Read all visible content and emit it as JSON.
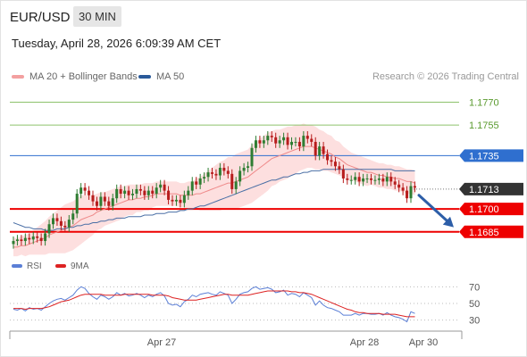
{
  "header": {
    "pair": "EUR/USD",
    "timeframe": "30 MIN"
  },
  "datetime": "Tuesday, April 28, 2026 6:09:39 AM CET",
  "legend": {
    "ma20": "MA 20 + Bollinger Bands",
    "ma50": "MA 50",
    "credit": "Research © 2026 Trading Central"
  },
  "colors": {
    "up": "#2e7d32",
    "down": "#b71c1c",
    "ma20": "#ef8a8a",
    "ma50": "#4a6fa5",
    "support": "#ee0000",
    "resistance_minor": "#8dc26b",
    "resistance_major": "#2f6fcf",
    "current": "#333333",
    "rsi": "#5b7fd6",
    "rsi_ma": "#dd2222",
    "arrow": "#2d5ea8"
  },
  "chart_data": {
    "type": "candlestick",
    "x_ticks": [
      "Apr 27",
      "Apr 28",
      "Apr 30"
    ],
    "price_ylim": [
      1.1672,
      1.1782
    ],
    "levels": [
      {
        "value": 1.177,
        "label": "1.1770",
        "kind": "resistance_minor"
      },
      {
        "value": 1.1755,
        "label": "1.1755",
        "kind": "resistance_minor"
      },
      {
        "value": 1.1735,
        "label": "1.1735",
        "kind": "resistance_major"
      },
      {
        "value": 1.1713,
        "label": "1.1713",
        "kind": "current"
      },
      {
        "value": 1.17,
        "label": "1.1700",
        "kind": "support"
      },
      {
        "value": 1.1685,
        "label": "1.1685",
        "kind": "support"
      }
    ],
    "forecast_arrow": {
      "from": 1.1709,
      "to": 1.1688
    },
    "candles_close": [
      1.1679,
      1.168,
      1.1679,
      1.1681,
      1.168,
      1.1682,
      1.1681,
      1.1679,
      1.1684,
      1.169,
      1.1694,
      1.1692,
      1.1689,
      1.1688,
      1.1693,
      1.1697,
      1.171,
      1.1714,
      1.1712,
      1.1709,
      1.1705,
      1.1702,
      1.1708,
      1.1705,
      1.1702,
      1.1707,
      1.1713,
      1.171,
      1.1712,
      1.1709,
      1.171,
      1.1713,
      1.1712,
      1.1709,
      1.1712,
      1.171,
      1.1714,
      1.1716,
      1.1712,
      1.1706,
      1.1705,
      1.1706,
      1.1704,
      1.1709,
      1.1712,
      1.1718,
      1.1716,
      1.172,
      1.1721,
      1.1724,
      1.1723,
      1.1722,
      1.1727,
      1.1725,
      1.1723,
      1.1713,
      1.1718,
      1.1725,
      1.1727,
      1.1728,
      1.174,
      1.1745,
      1.1743,
      1.1745,
      1.1748,
      1.1747,
      1.1743,
      1.1745,
      1.1747,
      1.1742,
      1.1744,
      1.1744,
      1.1741,
      1.1748,
      1.1746,
      1.1744,
      1.1735,
      1.1741,
      1.1736,
      1.1732,
      1.1731,
      1.1728,
      1.1726,
      1.172,
      1.1719,
      1.1719,
      1.1721,
      1.1718,
      1.172,
      1.172,
      1.1719,
      1.1719,
      1.172,
      1.1718,
      1.1721,
      1.1718,
      1.1716,
      1.1714,
      1.1712,
      1.1707,
      1.1715,
      1.1714
    ],
    "ma20": [
      1.1675,
      1.1675,
      1.1676,
      1.1676,
      1.1677,
      1.1678,
      1.1679,
      1.168,
      1.1681,
      1.1683,
      1.1684,
      1.1685,
      1.1686,
      1.1687,
      1.1688,
      1.1689,
      1.1691,
      1.1693,
      1.1694,
      1.1695,
      1.1696,
      1.1698,
      1.1699,
      1.17,
      1.1701,
      1.1702,
      1.1703,
      1.1704,
      1.1705,
      1.1706,
      1.1706,
      1.1707,
      1.1707,
      1.1708,
      1.1708,
      1.1709,
      1.171,
      1.171,
      1.171,
      1.171,
      1.171,
      1.171,
      1.1709,
      1.1709,
      1.1709,
      1.1709,
      1.171,
      1.171,
      1.1711,
      1.1712,
      1.1713,
      1.1714,
      1.1715,
      1.1716,
      1.1717,
      1.1717,
      1.1718,
      1.1719,
      1.172,
      1.1721,
      1.1723,
      1.1725,
      1.1727,
      1.1729,
      1.1731,
      1.1733,
      1.1734,
      1.1735,
      1.1736,
      1.1737,
      1.1738,
      1.1739,
      1.174,
      1.1741,
      1.1741,
      1.1741,
      1.174,
      1.1739,
      1.1738,
      1.1737,
      1.1736,
      1.1734,
      1.1733,
      1.1731,
      1.1729,
      1.1728,
      1.1727,
      1.1726,
      1.1725,
      1.1724,
      1.1724,
      1.1723,
      1.1722,
      1.1722,
      1.1721,
      1.1721,
      1.172,
      1.172,
      1.1719,
      1.1718,
      1.1718,
      1.1717
    ],
    "ma50": [
      1.1691,
      1.169,
      1.1689,
      1.1688,
      1.1688,
      1.1687,
      1.1687,
      1.1687,
      1.1686,
      1.1686,
      1.1686,
      1.1687,
      1.1687,
      1.1687,
      1.1688,
      1.1688,
      1.1689,
      1.1689,
      1.169,
      1.169,
      1.1691,
      1.1691,
      1.1692,
      1.1692,
      1.1693,
      1.1693,
      1.1694,
      1.1694,
      1.1694,
      1.1695,
      1.1695,
      1.1695,
      1.1695,
      1.1696,
      1.1696,
      1.1696,
      1.1697,
      1.1697,
      1.1697,
      1.1698,
      1.1698,
      1.1698,
      1.1699,
      1.1699,
      1.17,
      1.17,
      1.1701,
      1.1702,
      1.1702,
      1.1703,
      1.1704,
      1.1705,
      1.1706,
      1.1707,
      1.1708,
      1.1709,
      1.171,
      1.1711,
      1.1712,
      1.1713,
      1.1714,
      1.1715,
      1.1716,
      1.1717,
      1.1718,
      1.1719,
      1.1719,
      1.172,
      1.1721,
      1.1721,
      1.1722,
      1.1723,
      1.1723,
      1.1724,
      1.1724,
      1.1725,
      1.1725,
      1.1725,
      1.1726,
      1.1726,
      1.1726,
      1.1726,
      1.1726,
      1.1726,
      1.1726,
      1.1726,
      1.1726,
      1.1726,
      1.1726,
      1.1726,
      1.1726,
      1.1726,
      1.1726,
      1.1726,
      1.1726,
      1.1726,
      1.1725,
      1.1725,
      1.1725,
      1.1725,
      1.1725,
      1.1725
    ],
    "bb_width": [
      0.0006,
      0.0006,
      0.0006,
      0.0007,
      0.0007,
      0.0008,
      0.0009,
      0.001,
      0.0011,
      0.0012,
      0.0013,
      0.0014,
      0.0015,
      0.0016,
      0.0016,
      0.0016,
      0.0016,
      0.0016,
      0.0015,
      0.0014,
      0.0013,
      0.0012,
      0.0012,
      0.0011,
      0.0011,
      0.0011,
      0.0011,
      0.0011,
      0.001,
      0.001,
      0.001,
      0.0009,
      0.0009,
      0.0009,
      0.0009,
      0.0008,
      0.0008,
      0.0008,
      0.0008,
      0.0008,
      0.0008,
      0.0008,
      0.0008,
      0.0008,
      0.0009,
      0.0009,
      0.001,
      0.0011,
      0.0012,
      0.0013,
      0.0014,
      0.0015,
      0.0016,
      0.0016,
      0.0017,
      0.0017,
      0.0018,
      0.0018,
      0.0018,
      0.0018,
      0.0019,
      0.0019,
      0.0019,
      0.0019,
      0.0019,
      0.0018,
      0.0018,
      0.0017,
      0.0017,
      0.0017,
      0.0016,
      0.0016,
      0.0015,
      0.0015,
      0.0014,
      0.0014,
      0.0014,
      0.0013,
      0.0013,
      0.0012,
      0.0012,
      0.0011,
      0.0011,
      0.001,
      0.001,
      0.0009,
      0.0009,
      0.0009,
      0.0009,
      0.0009,
      0.0008,
      0.0008,
      0.0008,
      0.0008,
      0.0008,
      0.0008,
      0.0008,
      0.0008,
      0.0008,
      0.0008,
      0.0008,
      0.0008
    ],
    "rsi": {
      "legend": [
        "RSI",
        "9MA"
      ],
      "ylim": [
        20,
        80
      ],
      "ticks": [
        70,
        50,
        30
      ],
      "rsi": [
        43,
        42,
        44,
        41,
        45,
        43,
        44,
        42,
        46,
        50,
        53,
        55,
        56,
        54,
        57,
        60,
        66,
        70,
        68,
        62,
        58,
        55,
        60,
        58,
        55,
        58,
        63,
        60,
        62,
        59,
        60,
        62,
        60,
        57,
        60,
        58,
        61,
        63,
        59,
        50,
        48,
        49,
        46,
        52,
        55,
        60,
        58,
        61,
        62,
        63,
        61,
        60,
        64,
        62,
        60,
        50,
        55,
        61,
        63,
        64,
        68,
        70,
        67,
        68,
        69,
        67,
        63,
        64,
        66,
        60,
        62,
        61,
        58,
        63,
        60,
        57,
        48,
        53,
        48,
        45,
        44,
        42,
        40,
        36,
        36,
        36,
        38,
        36,
        38,
        38,
        37,
        37,
        38,
        36,
        39,
        36,
        34,
        33,
        31,
        28,
        40,
        38
      ],
      "ma": [
        44,
        44,
        44,
        43,
        44,
        44,
        44,
        44,
        45,
        46,
        48,
        50,
        52,
        53,
        54,
        56,
        58,
        60,
        61,
        61,
        61,
        61,
        61,
        60,
        60,
        60,
        60,
        60,
        61,
        61,
        61,
        61,
        61,
        61,
        61,
        60,
        60,
        60,
        60,
        59,
        57,
        56,
        55,
        54,
        54,
        54,
        54,
        55,
        56,
        57,
        58,
        59,
        60,
        61,
        61,
        60,
        60,
        60,
        60,
        60,
        61,
        62,
        63,
        64,
        65,
        65,
        65,
        65,
        65,
        65,
        64,
        64,
        63,
        63,
        62,
        61,
        59,
        57,
        55,
        53,
        51,
        49,
        47,
        45,
        43,
        42,
        40,
        39,
        39,
        38,
        38,
        38,
        38,
        37,
        37,
        37,
        37,
        36,
        35,
        34,
        34,
        34
      ]
    }
  }
}
